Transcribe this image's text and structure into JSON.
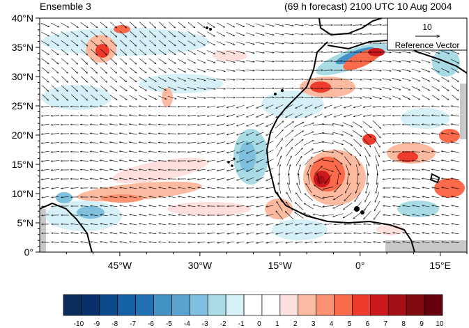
{
  "header": {
    "left_title": "Ensemble 3",
    "right_title": "(69 h forecast) 2100 UTC 10 Aug 2004"
  },
  "map": {
    "lon_range": [
      -60,
      20
    ],
    "lat_range": [
      0,
      40
    ],
    "y_ticks": [
      "40°N",
      "35°N",
      "30°N",
      "25°N",
      "20°N",
      "15°N",
      "10°N",
      "5°N",
      "0°"
    ],
    "x_ticks": [
      "45°W",
      "30°W",
      "15°W",
      "0°",
      "15°E"
    ],
    "missing_data_color": "#c8c8c8",
    "coastline_color": "#000000"
  },
  "reference_vector": {
    "magnitude_label": "10",
    "label": "Reference Vector"
  },
  "colorbar": {
    "labels": [
      "-10",
      "-9",
      "-8",
      "-7",
      "-6",
      "-5",
      "-4",
      "-3",
      "-2",
      "-1",
      "0",
      "1",
      "2",
      "3",
      "4",
      "5",
      "6",
      "7",
      "8",
      "9",
      "10"
    ],
    "colors": [
      "#0b2d5b",
      "#08306b",
      "#0d4a8c",
      "#1561a5",
      "#2171b5",
      "#4292c6",
      "#5aa3d0",
      "#7ec0dd",
      "#a8dbe4",
      "#d6f0f8",
      "#ffffff",
      "#ffffff",
      "#fde0dd",
      "#fcbba1",
      "#fc9272",
      "#fb6a4a",
      "#ef3b2c",
      "#cb181d",
      "#a50f15",
      "#800a0e",
      "#67000d"
    ]
  }
}
